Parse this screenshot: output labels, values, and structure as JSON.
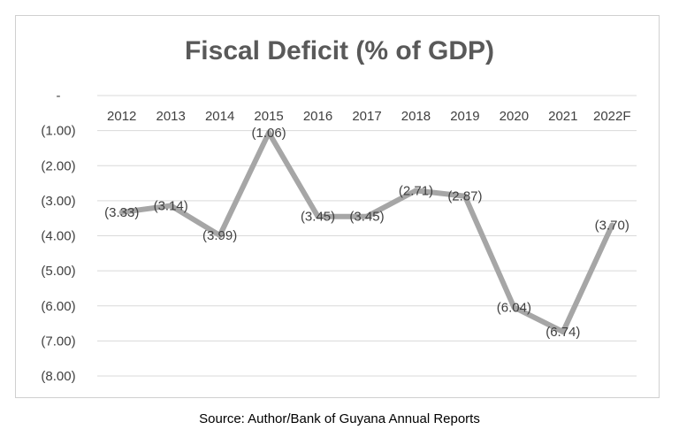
{
  "chart_data": {
    "type": "line",
    "title": "Fiscal Deficit (% of GDP)",
    "categories": [
      "2012",
      "2013",
      "2014",
      "2015",
      "2016",
      "2017",
      "2018",
      "2019",
      "2020",
      "2021",
      "2022F"
    ],
    "series": [
      {
        "values": [
          -3.33,
          -3.14,
          -3.99,
          -1.06,
          -3.45,
          -3.45,
          -2.71,
          -2.87,
          -6.04,
          -6.74,
          -3.7
        ]
      }
    ],
    "data_labels": [
      "(3.33)",
      "(3.14)",
      "(3.99)",
      "(1.06)",
      "(3.45)",
      "(3.45)",
      "(2.71)",
      "(2.87)",
      "(6.04)",
      "(6.74)",
      "(3.70)"
    ],
    "y_ticks": [
      0,
      -1,
      -2,
      -3,
      -4,
      -5,
      -6,
      -7,
      -8
    ],
    "y_tick_labels": [
      "-",
      "(1.00)",
      "(2.00)",
      "(3.00)",
      "(4.00)",
      "(5.00)",
      "(6.00)",
      "(7.00)",
      "(8.00)"
    ],
    "ylim": [
      -8,
      0
    ],
    "x_axis_position": "top",
    "grid": true,
    "line_color": "#a6a6a6",
    "grid_color": "#d9d9d9",
    "source": "Source: Author/Bank of Guyana Annual Reports"
  }
}
